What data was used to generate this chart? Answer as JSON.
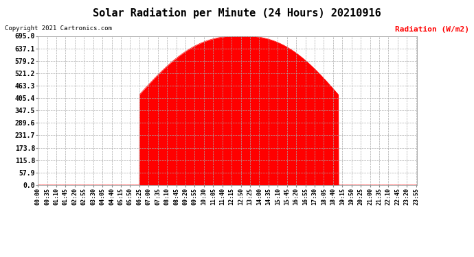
{
  "title": "Solar Radiation per Minute (24 Hours) 20210916",
  "copyright_text": "Copyright 2021 Cartronics.com",
  "ylabel": "Radiation (W/m2)",
  "ylabel_color": "#ff0000",
  "background_color": "#ffffff",
  "fill_color": "#ff0000",
  "line_color": "#ff0000",
  "grid_color": "#aaaaaa",
  "title_fontsize": 11,
  "ymax": 695.0,
  "yticks": [
    0.0,
    57.9,
    115.8,
    173.8,
    231.7,
    289.6,
    347.5,
    405.4,
    463.3,
    521.2,
    579.2,
    637.1,
    695.0
  ],
  "peak_hour": 12.833,
  "peak_value": 695.0,
  "rise_hour": 6.417,
  "set_hour": 19.0,
  "sigma_power": 2.5,
  "total_minutes": 1440
}
